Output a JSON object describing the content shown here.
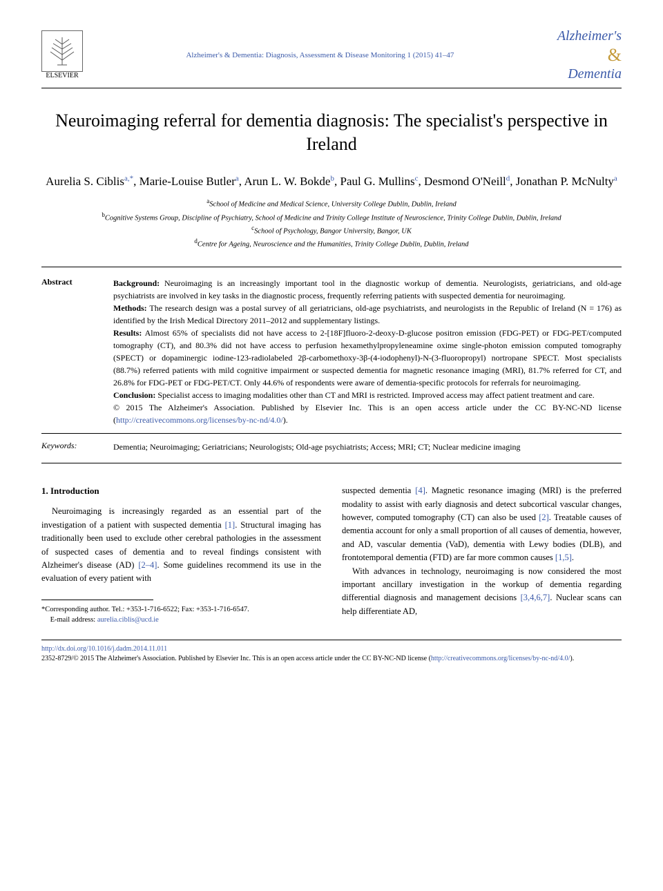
{
  "header": {
    "publisher_name": "ELSEVIER",
    "citation": "Alzheimer's & Dementia: Diagnosis, Assessment & Disease Monitoring 1 (2015) 41–47",
    "journal_line1": "Alzheimer's",
    "journal_amp": "&",
    "journal_line2": "Dementia"
  },
  "article": {
    "title": "Neuroimaging referral for dementia diagnosis: The specialist's perspective in Ireland",
    "authors_html": "Aurelia S. Ciblis<sup>a,*</sup>, Marie-Louise Butler<sup>a</sup>, Arun L. W. Bokde<sup>b</sup>, Paul G. Mullins<sup>c</sup>, Desmond O'Neill<sup>d</sup>, Jonathan P. McNulty<sup>a</sup>",
    "affiliations": [
      {
        "sup": "a",
        "text": "School of Medicine and Medical Science, University College Dublin, Dublin, Ireland"
      },
      {
        "sup": "b",
        "text": "Cognitive Systems Group, Discipline of Psychiatry, School of Medicine and Trinity College Institute of Neuroscience, Trinity College Dublin, Dublin, Ireland"
      },
      {
        "sup": "c",
        "text": "School of Psychology, Bangor University, Bangor, UK"
      },
      {
        "sup": "d",
        "text": "Centre for Ageing, Neuroscience and the Humanities, Trinity College Dublin, Dublin, Ireland"
      }
    ]
  },
  "abstract": {
    "label": "Abstract",
    "background_label": "Background:",
    "background": "Neuroimaging is an increasingly important tool in the diagnostic workup of dementia. Neurologists, geriatricians, and old-age psychiatrists are involved in key tasks in the diagnostic process, frequently referring patients with suspected dementia for neuroimaging.",
    "methods_label": "Methods:",
    "methods": "The research design was a postal survey of all geriatricians, old-age psychiatrists, and neurologists in the Republic of Ireland (N = 176) as identified by the Irish Medical Directory 2011–2012 and supplementary listings.",
    "results_label": "Results:",
    "results": "Almost 65% of specialists did not have access to 2-[18F]fluoro-2-deoxy-D-glucose positron emission (FDG-PET) or FDG-PET/computed tomography (CT), and 80.3% did not have access to perfusion hexamethylpropyleneamine oxime single-photon emission computed tomography (SPECT) or dopaminergic iodine-123-radiolabeled 2β-carbomethoxy-3β-(4-iodophenyl)-N-(3-fluoropropyl) nortropane SPECT. Most specialists (88.7%) referred patients with mild cognitive impairment or suspected dementia for magnetic resonance imaging (MRI), 81.7% referred for CT, and 26.8% for FDG-PET or FDG-PET/CT. Only 44.6% of respondents were aware of dementia-specific protocols for referrals for neuroimaging.",
    "conclusion_label": "Conclusion:",
    "conclusion": "Specialist access to imaging modalities other than CT and MRI is restricted. Improved access may affect patient treatment and care.",
    "copyright": "© 2015 The Alzheimer's Association. Published by Elsevier Inc. This is an open access article under the CC BY-NC-ND license (",
    "cc_url": "http://creativecommons.org/licenses/by-nc-nd/4.0/",
    "copyright_close": ")."
  },
  "keywords": {
    "label": "Keywords:",
    "text": "Dementia; Neuroimaging; Geriatricians; Neurologists; Old-age psychiatrists; Access; MRI; CT; Nuclear medicine imaging"
  },
  "body": {
    "section_heading": "1. Introduction",
    "col1_p1_a": "Neuroimaging is increasingly regarded as an essential part of the investigation of a patient with suspected dementia ",
    "ref1": "[1]",
    "col1_p1_b": ". Structural imaging has traditionally been used to exclude other cerebral pathologies in the assessment of suspected cases of dementia and to reveal findings consistent with Alzheimer's disease (AD) ",
    "ref2": "[2–4]",
    "col1_p1_c": ". Some guidelines recommend its use in the evaluation of every patient with",
    "col2_p1_a": "suspected dementia ",
    "ref4": "[4]",
    "col2_p1_b": ". Magnetic resonance imaging (MRI) is the preferred modality to assist with early diagnosis and detect subcortical vascular changes, however, computed tomography (CT) can also be used ",
    "ref2b": "[2]",
    "col2_p1_c": ". Treatable causes of dementia account for only a small proportion of all causes of dementia, however, and AD, vascular dementia (VaD), dementia with Lewy bodies (DLB), and frontotemporal dementia (FTD) are far more common causes ",
    "ref15": "[1,5]",
    "col2_p1_d": ".",
    "col2_p2_a": "With advances in technology, neuroimaging is now considered the most important ancillary investigation in the workup of dementia regarding differential diagnosis and management decisions ",
    "ref3467": "[3,4,6,7]",
    "col2_p2_b": ". Nuclear scans can help differentiate AD,"
  },
  "footnotes": {
    "corresponding": "*Corresponding author. Tel.: +353-1-716-6522; Fax: +353-1-716-6547.",
    "email_label": "E-mail address: ",
    "email": "aurelia.ciblis@ucd.ie"
  },
  "footer": {
    "doi": "http://dx.doi.org/10.1016/j.dadm.2014.11.011",
    "issn_copyright": "2352-8729/© 2015 The Alzheimer's Association. Published by Elsevier Inc. This is an open access article under the CC BY-NC-ND license (",
    "cc_url": "http://creativecommons.org/licenses/by-nc-nd/4.0/",
    "close": ")."
  },
  "colors": {
    "link": "#3b5aa9",
    "text": "#000000",
    "gold": "#c49a3a"
  }
}
